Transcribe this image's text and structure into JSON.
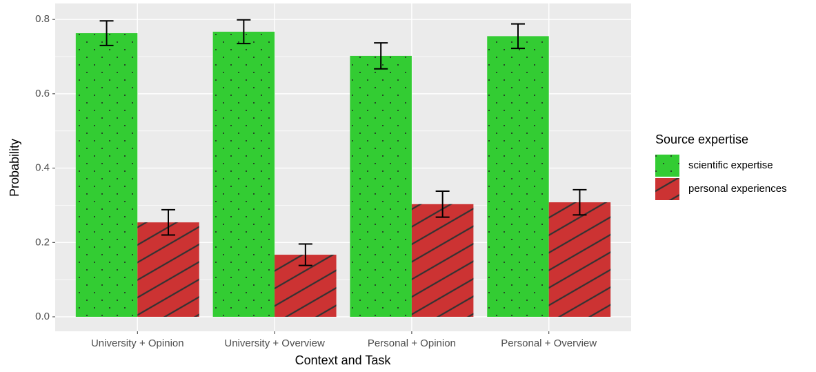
{
  "chart_data": {
    "type": "bar",
    "x_label": "Context and Task",
    "y_label": "Probability",
    "categories": [
      "University + Opinion",
      "University + Overview",
      "Personal + Opinion",
      "Personal + Overview"
    ],
    "series": [
      {
        "name": "scientific expertise",
        "color": "#33cc33",
        "values": [
          0.763,
          0.767,
          0.702,
          0.755
        ],
        "errors": [
          0.033,
          0.032,
          0.035,
          0.033
        ]
      },
      {
        "name": "personal experiences",
        "color": "#cc3333",
        "values": [
          0.254,
          0.167,
          0.303,
          0.308
        ],
        "errors": [
          0.034,
          0.029,
          0.035,
          0.034
        ]
      }
    ],
    "legend_title": "Source expertise",
    "legend_position": "right",
    "ylim": [
      -0.039,
      0.843
    ],
    "yticks": [
      {
        "value": 0,
        "label": "0.0"
      },
      0.2,
      0.4,
      0.6,
      0.8
    ],
    "minor_yticks": [
      0.1,
      0.3,
      0.5,
      0.7
    ],
    "grid": true
  }
}
